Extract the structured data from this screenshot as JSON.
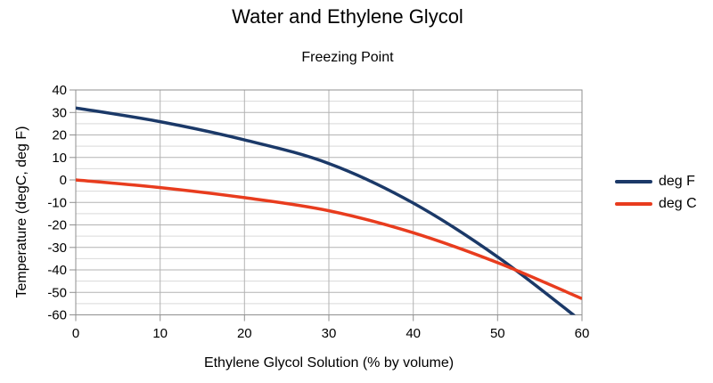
{
  "chart_data": {
    "type": "line",
    "title": "Water and Ethylene Glycol",
    "subtitle": "Freezing Point",
    "xlabel": "Ethylene Glycol Solution (% by volume)",
    "ylabel": "Temperature (degC, deg F)",
    "x": [
      0,
      10,
      20,
      30,
      40,
      50,
      60
    ],
    "series": [
      {
        "name": "deg F",
        "color": "#1b3968",
        "values": [
          32,
          25.9,
          17.8,
          7.3,
          -10.3,
          -34.2,
          -63
        ]
      },
      {
        "name": "deg C",
        "color": "#e83c1e",
        "values": [
          0,
          -3.4,
          -7.9,
          -13.7,
          -23.5,
          -36.8,
          -52.8
        ]
      }
    ],
    "xlim": [
      0,
      60
    ],
    "ylim": [
      -60,
      40
    ],
    "x_ticks": [
      0,
      10,
      20,
      30,
      40,
      50,
      60
    ],
    "y_ticks": [
      40,
      30,
      20,
      10,
      0,
      -10,
      -20,
      -30,
      -40,
      -50,
      -60
    ],
    "grid": true,
    "minor_grid_step_y": 5,
    "line_smoothing": true,
    "legend_position": "right",
    "colors": {
      "grid_major": "#b3b3b3",
      "grid_minor": "#d9d9d9",
      "axis": "#8f8f8f",
      "text": "#000000",
      "background": "#ffffff"
    }
  }
}
